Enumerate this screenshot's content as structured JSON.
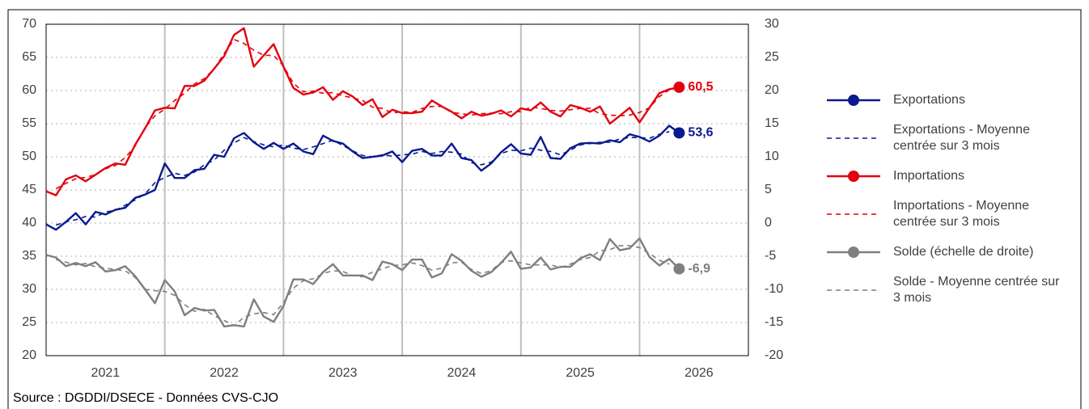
{
  "chart_data": {
    "type": "line",
    "source": "Source : DGDDI/DSECE - Données CVS-CJO",
    "categories": [
      null,
      null,
      null,
      null,
      null,
      null,
      "2021",
      null,
      null,
      null,
      null,
      null,
      null,
      null,
      null,
      null,
      null,
      null,
      "2022",
      null,
      null,
      null,
      null,
      null,
      null,
      null,
      null,
      null,
      null,
      null,
      "2023",
      null,
      null,
      null,
      null,
      null,
      null,
      null,
      null,
      null,
      null,
      null,
      "2024",
      null,
      null,
      null,
      null,
      null,
      null,
      null,
      null,
      null,
      null,
      null,
      "2025",
      null,
      null,
      null,
      null,
      null,
      null,
      null,
      null,
      null,
      null,
      null,
      "2026",
      null,
      null,
      null,
      null,
      null
    ],
    "ylim": [
      20,
      70
    ],
    "yticks": [
      20,
      25,
      30,
      35,
      40,
      45,
      50,
      55,
      60,
      65,
      70
    ],
    "y2lim": [
      -20,
      30
    ],
    "y2ticks": [
      -20,
      -15,
      -10,
      -5,
      0,
      5,
      10,
      15,
      20,
      25,
      30
    ],
    "grid": true,
    "series": [
      {
        "name": "Exportations",
        "color": "#0a1a8c",
        "dashed": false,
        "values": [
          39.8,
          39,
          40.2,
          41.5,
          39.8,
          41.7,
          41.3,
          42,
          42.3,
          43.8,
          44.3,
          45,
          49,
          46.8,
          46.8,
          48,
          48.2,
          50.3,
          50,
          52.8,
          53.6,
          52.2,
          51.2,
          52.1,
          51.2,
          52,
          50.8,
          50.4,
          53.2,
          52.4,
          52,
          50.8,
          49.8,
          50,
          50.2,
          50.8,
          49.2,
          50.9,
          51.2,
          50.2,
          50.2,
          52,
          49.8,
          49.5,
          47.9,
          49,
          50.7,
          51.9,
          50.5,
          50.3,
          53,
          49.8,
          49.7,
          51.3,
          52,
          52.1,
          52,
          52.5,
          52.2,
          53.4,
          53,
          52.3,
          53.2,
          54.7,
          53.6,
          null,
          null,
          null,
          null,
          null,
          null,
          null
        ],
        "value_labels": [
          null,
          null,
          null,
          null,
          null,
          null,
          null,
          null,
          null,
          null,
          null,
          null,
          null,
          null,
          null,
          null,
          null,
          null,
          null,
          null,
          null,
          null,
          null,
          null,
          null,
          null,
          null,
          null,
          null,
          null,
          null,
          null,
          null,
          null,
          null,
          null,
          null,
          null,
          null,
          null,
          null,
          null,
          null,
          null,
          null,
          null,
          null,
          null,
          null,
          null,
          null,
          null,
          null,
          null,
          null,
          null,
          null,
          null,
          null,
          null,
          null,
          null,
          null,
          null,
          "53,6",
          null,
          null,
          null,
          null,
          null,
          null,
          null
        ]
      },
      {
        "name": "Exportations - Moyenne centrée sur 3 mois",
        "color": "#0a1a8c",
        "dashed": true,
        "values": [
          null,
          39.7,
          40.2,
          40.5,
          41,
          40.9,
          41.7,
          41.9,
          42.7,
          43.5,
          44.4,
          46.1,
          46.9,
          47.5,
          47.2,
          47.7,
          48.8,
          49.5,
          51,
          52.1,
          52.9,
          52.3,
          51.8,
          51.5,
          51.8,
          51.3,
          51.1,
          51.5,
          52,
          52.5,
          51.7,
          50.9,
          50.2,
          50,
          50.3,
          50.1,
          50.3,
          50.4,
          50.8,
          50.5,
          50.8,
          50.7,
          50.4,
          49.1,
          48.8,
          49.2,
          50.5,
          51,
          50.9,
          51.3,
          51,
          50.8,
          50.3,
          51,
          51.8,
          52,
          52.2,
          52.2,
          52.7,
          52.9,
          52.9,
          52.8,
          53.4,
          53.8,
          null,
          null,
          null,
          null,
          null,
          null,
          null,
          null
        ]
      },
      {
        "name": "Importations",
        "color": "#e3000f",
        "dashed": false,
        "values": [
          44.8,
          44.2,
          46.6,
          47.2,
          46.3,
          47.3,
          48.3,
          49,
          48.8,
          51.8,
          54.3,
          57,
          57.4,
          57.3,
          60.7,
          60.7,
          61.5,
          63.3,
          65.2,
          68.4,
          69.4,
          63.6,
          65.3,
          67,
          63.6,
          60.4,
          59.4,
          59.7,
          60.5,
          58.6,
          59.9,
          59.1,
          57.8,
          58.7,
          56,
          57.1,
          56.6,
          56.6,
          56.8,
          58.5,
          57.6,
          56.8,
          55.8,
          56.8,
          56.2,
          56.5,
          57,
          56.1,
          57.3,
          57,
          58.2,
          56.8,
          56.1,
          57.8,
          57.4,
          56.8,
          57.6,
          55,
          56.2,
          57.4,
          55.2,
          57.4,
          59.6,
          60.2,
          60.5,
          null,
          null,
          null,
          null,
          null,
          null,
          null
        ],
        "value_labels": [
          null,
          null,
          null,
          null,
          null,
          null,
          null,
          null,
          null,
          null,
          null,
          null,
          null,
          null,
          null,
          null,
          null,
          null,
          null,
          null,
          null,
          null,
          null,
          null,
          null,
          null,
          null,
          null,
          null,
          null,
          null,
          null,
          null,
          null,
          null,
          null,
          null,
          null,
          null,
          null,
          null,
          null,
          null,
          null,
          null,
          null,
          null,
          null,
          null,
          null,
          null,
          null,
          null,
          null,
          null,
          null,
          null,
          null,
          null,
          null,
          null,
          null,
          null,
          null,
          "60,5",
          null,
          null,
          null,
          null,
          null,
          null,
          null
        ]
      },
      {
        "name": "Importations - Moyenne centrée sur 3 mois",
        "color": "#e3000f",
        "dashed": true,
        "values": [
          null,
          45.2,
          46,
          46.7,
          46.9,
          47.3,
          48.2,
          48.7,
          49.9,
          51.6,
          54.4,
          56.2,
          57.2,
          58.5,
          59.6,
          61,
          61.8,
          63.3,
          65.6,
          67.7,
          67.1,
          66.1,
          65.3,
          65.3,
          63.7,
          61.1,
          59.8,
          59.9,
          59.6,
          59.7,
          59.2,
          58.9,
          58.5,
          57.5,
          57.3,
          56.6,
          56.8,
          56.7,
          57.3,
          57.6,
          57.6,
          56.7,
          56.5,
          56.3,
          56.5,
          56.6,
          56.5,
          56.8,
          56.8,
          57.5,
          57.3,
          57,
          56.9,
          57.1,
          57.3,
          57.3,
          56.5,
          56.3,
          56.2,
          56.3,
          56.7,
          57.4,
          59.1,
          60.1,
          null,
          null,
          null,
          null,
          null,
          null,
          null,
          null
        ]
      },
      {
        "name": "Solde (échelle de droite)",
        "color": "#7f7f7f",
        "dashed": false,
        "axis": "y2",
        "values": [
          -4.8,
          -5.2,
          -6.5,
          -6,
          -6.5,
          -5.9,
          -7.3,
          -7.1,
          -6.5,
          -8,
          -10,
          -12.1,
          -8.6,
          -10.3,
          -13.9,
          -12.8,
          -13.2,
          -13.1,
          -15.6,
          -15.4,
          -15.6,
          -11.5,
          -14.1,
          -14.9,
          -12.5,
          -8.5,
          -8.5,
          -9.2,
          -7.4,
          -6.2,
          -7.9,
          -7.9,
          -7.9,
          -8.6,
          -5.8,
          -6.2,
          -7.1,
          -5.5,
          -5.5,
          -8.2,
          -7.6,
          -4.7,
          -5.7,
          -7.2,
          -8.1,
          -7.4,
          -6,
          -4.3,
          -6.9,
          -6.7,
          -5.2,
          -7,
          -6.6,
          -6.6,
          -5.3,
          -4.7,
          -5.6,
          -2.4,
          -4.1,
          -3.8,
          -2.3,
          -5.1,
          -6.4,
          -5.4,
          -6.9,
          null,
          null,
          null,
          null,
          null,
          null,
          null
        ],
        "value_labels": [
          null,
          null,
          null,
          null,
          null,
          null,
          null,
          null,
          null,
          null,
          null,
          null,
          null,
          null,
          null,
          null,
          null,
          null,
          null,
          null,
          null,
          null,
          null,
          null,
          null,
          null,
          null,
          null,
          null,
          null,
          null,
          null,
          null,
          null,
          null,
          null,
          null,
          null,
          null,
          null,
          null,
          null,
          null,
          null,
          null,
          null,
          null,
          null,
          null,
          null,
          null,
          null,
          null,
          null,
          null,
          null,
          null,
          null,
          null,
          null,
          null,
          null,
          null,
          null,
          "-6,9",
          null,
          null,
          null,
          null,
          null,
          null,
          null
        ]
      },
      {
        "name": "Solde - Moyenne centrée sur 3 mois",
        "color": "#7f7f7f",
        "dashed": true,
        "axis": "y2",
        "values": [
          null,
          -5.5,
          -5.9,
          -6.3,
          -6.1,
          -6.6,
          -6.8,
          -7,
          -7.2,
          -8.2,
          -10,
          -10.2,
          -10.3,
          -10.9,
          -12.3,
          -13.3,
          -13,
          -14,
          -14.7,
          -15.5,
          -14.2,
          -13.7,
          -13.5,
          -13.8,
          -12,
          -9.8,
          -8.7,
          -8.4,
          -7.6,
          -7.2,
          -7.3,
          -7.9,
          -8.1,
          -7.4,
          -6.9,
          -6.4,
          -6.3,
          -6,
          -6.4,
          -7.1,
          -6.8,
          -6,
          -5.9,
          -7,
          -7.6,
          -7.2,
          -5.9,
          -5.7,
          -6,
          -6.3,
          -6.3,
          -6.3,
          -6.7,
          -6.2,
          -5.5,
          -5.2,
          -4.2,
          -4,
          -3.4,
          -3.4,
          -3.7,
          -4.6,
          -5.6,
          -6.2,
          null,
          null,
          null,
          null,
          null,
          null,
          null,
          null
        ]
      }
    ]
  }
}
